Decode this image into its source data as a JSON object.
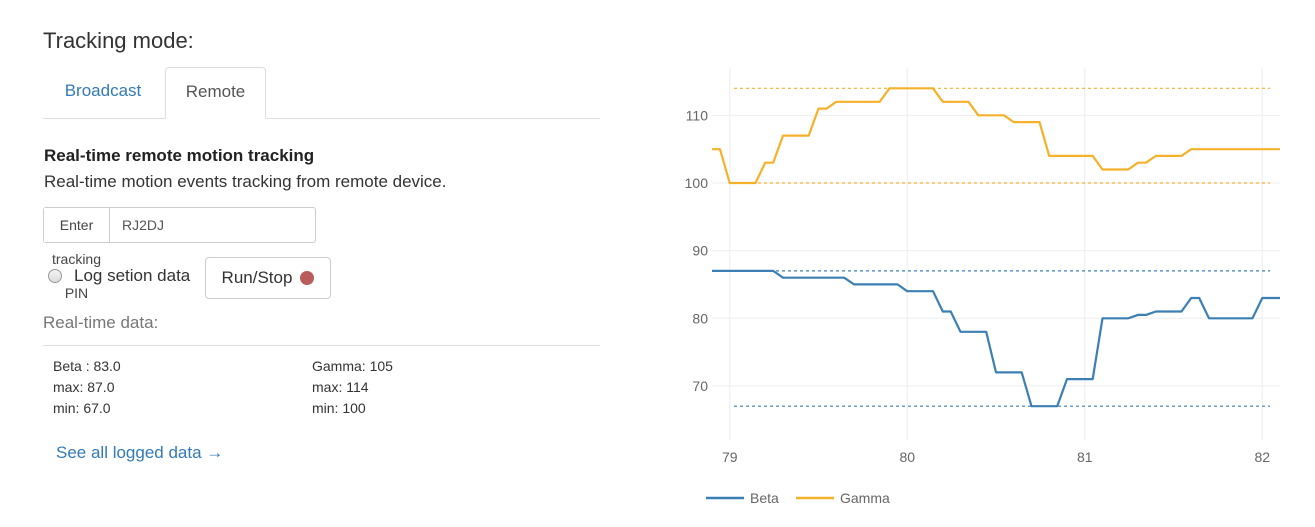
{
  "header": {
    "title": "Tracking mode:"
  },
  "tabs": {
    "broadcast": "Broadcast",
    "remote": "Remote",
    "active": "Remote"
  },
  "remote": {
    "heading": "Real-time remote motion tracking",
    "description": "Real-time motion events tracking from remote device.",
    "pin_addon": "Enter tracking PIN",
    "pin_value": "RJ2DJ",
    "log_label": "Log setion data",
    "run_label": "Run/Stop",
    "run_dot_color": "#b85c5c"
  },
  "realtime": {
    "label": "Real-time data:",
    "beta_current": "Beta : 83.0",
    "beta_max": "max: 87.0",
    "beta_min": "min: 67.0",
    "gamma_current": "Gamma: 105",
    "gamma_max": "max: 114",
    "gamma_min": "min: 100"
  },
  "links": {
    "see_all": "See all logged data →"
  },
  "colors": {
    "beta": "#3b7fb4",
    "gamma": "#f6b12a",
    "link": "#337ab7"
  },
  "chart_data": {
    "type": "line",
    "xlim": [
      78.9,
      82.1
    ],
    "ylim": [
      62,
      117
    ],
    "x_ticks": [
      79,
      80,
      81,
      82
    ],
    "y_ticks": [
      70,
      80,
      90,
      100,
      110
    ],
    "grid": true,
    "legend": "bottom-left",
    "series": [
      {
        "name": "Beta",
        "color": "#3b7fb4",
        "x": [
          78.9,
          79.0,
          79.1,
          79.2,
          79.3,
          79.4,
          79.5,
          79.6,
          79.7,
          79.8,
          79.9,
          80.0,
          80.1,
          80.2,
          80.3,
          80.4,
          80.5,
          80.6,
          80.7,
          80.8,
          80.9,
          81.0,
          81.1,
          81.2,
          81.3,
          81.4,
          81.5,
          81.6,
          81.7,
          81.8,
          81.9,
          82.0,
          82.1
        ],
        "values": [
          87,
          87,
          87,
          87,
          86,
          86,
          86,
          86,
          85,
          85,
          85,
          84,
          84,
          81,
          78,
          78,
          72,
          72,
          67,
          67,
          71,
          71,
          80,
          80,
          80.5,
          81,
          81,
          83,
          80,
          80,
          80,
          83,
          83
        ],
        "max": 87,
        "min": 67
      },
      {
        "name": "Gamma",
        "color": "#f6b12a",
        "x": [
          78.9,
          79.0,
          79.1,
          79.2,
          79.3,
          79.4,
          79.5,
          79.6,
          79.7,
          79.8,
          79.9,
          80.0,
          80.1,
          80.2,
          80.3,
          80.4,
          80.5,
          80.6,
          80.7,
          80.8,
          80.9,
          81.0,
          81.1,
          81.2,
          81.3,
          81.4,
          81.5,
          81.6,
          81.7,
          81.8,
          81.9,
          82.0,
          82.1
        ],
        "values": [
          105,
          100,
          100,
          103,
          107,
          107,
          111,
          112,
          112,
          112,
          114,
          114,
          114,
          112,
          112,
          110,
          110,
          109,
          109,
          104,
          104,
          104,
          102,
          102,
          103,
          104,
          104,
          105,
          105,
          105,
          105,
          105,
          105
        ],
        "max": 114,
        "min": 100
      }
    ]
  }
}
